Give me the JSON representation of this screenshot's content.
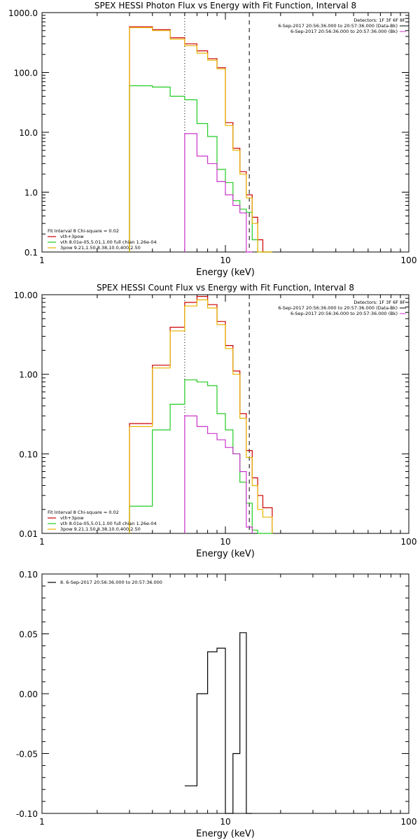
{
  "chart_data": [
    {
      "type": "line",
      "title": "SPEX HESSI Photon Flux vs Energy with Fit Function, Interval 8",
      "xlabel": "Energy (keV)",
      "ylabel": "",
      "xscale": "log",
      "yscale": "log",
      "xlim": [
        1,
        100
      ],
      "ylim": [
        0.1,
        1000
      ],
      "xticks": [
        "1",
        "10",
        "100"
      ],
      "yticks": [
        "0.1",
        "1.0",
        "10.0",
        "100.0",
        "1000.0"
      ],
      "ytick_values": [
        0.1,
        1,
        10,
        100,
        1000
      ],
      "vlines": [
        {
          "x": 6.0,
          "style": "dotted"
        },
        {
          "x": 13.5,
          "style": "dashed"
        }
      ],
      "edges": [
        3,
        4,
        5,
        6,
        7,
        8,
        9,
        10,
        11,
        12,
        13,
        14,
        15,
        16,
        18
      ],
      "series": [
        {
          "name": "vth+3pow",
          "color": "#cc0000",
          "values": [
            580,
            520,
            380,
            300,
            230,
            170,
            120,
            14.5,
            5.4,
            2.2,
            0.9,
            0.38,
            0.16,
            0.1
          ]
        },
        {
          "name": "vth 8.01e-05,5.01,1.00 full chian 1.26e-04",
          "color": "#22cc22",
          "values": [
            60,
            57,
            40,
            35,
            14,
            8.5,
            2.4,
            1.45,
            0.72,
            0.52,
            0.46,
            0.16,
            0.1,
            0.1
          ]
        },
        {
          "name": "3pow 9.21,1.50,8.38,10.0,400,2.50",
          "color": "#e8b400",
          "values": [
            560,
            500,
            360,
            280,
            210,
            160,
            115,
            13,
            5,
            2.0,
            0.8,
            0.3,
            0.1,
            0.1
          ]
        },
        {
          "name": "",
          "color": "#cc33cc",
          "values": [
            null,
            null,
            null,
            9.5,
            4,
            3,
            1.5,
            0.9,
            0.6,
            0.45,
            0.1,
            null,
            null,
            null
          ]
        }
      ],
      "legend": {
        "placement": "bottom-left",
        "header": "Fit Interval 8   Chi-square = 0.02",
        "entries": [
          {
            "label": "vth+3pow",
            "color": "#cc0000"
          },
          {
            "label": "vth 8.01e-05,5.01,1.00  full chian 1.26e-04",
            "color": "#22cc22"
          },
          {
            "label": "3pow 9.21,1.50,8.38,10.0,400,2.50",
            "color": "#e8b400"
          }
        ]
      },
      "info": {
        "detectors": "Detectors: 1F 3F 6F 8F",
        "line1": "6-Sep-2017 20:56:36.000 to 20:57:36.000 (Data-Bk)",
        "line2": "6-Sep-2017 20:56:36.000 to 20:57:36.000 (Bk)"
      }
    },
    {
      "type": "line",
      "title": "SPEX HESSI Count Flux vs Energy with Fit Function, Interval 8",
      "xlabel": "Energy (keV)",
      "ylabel": "",
      "xscale": "log",
      "yscale": "log",
      "xlim": [
        1,
        100
      ],
      "ylim": [
        0.01,
        10
      ],
      "xticks": [
        "1",
        "10",
        "100"
      ],
      "yticks": [
        "0.01",
        "0.10",
        "1.00",
        "10.00"
      ],
      "ytick_values": [
        0.01,
        0.1,
        1,
        10
      ],
      "vlines": [
        {
          "x": 6.0,
          "style": "dotted"
        },
        {
          "x": 13.5,
          "style": "dashed"
        }
      ],
      "edges": [
        3,
        4,
        5,
        6,
        7,
        8,
        9,
        10,
        11,
        12,
        13,
        14,
        15,
        16,
        18
      ],
      "series": [
        {
          "name": "vth+3pow",
          "color": "#cc0000",
          "values": [
            0.24,
            1.3,
            3.9,
            8.0,
            9.5,
            7.5,
            4.6,
            2.3,
            1.1,
            0.32,
            0.11,
            0.05,
            0.03,
            0.021
          ]
        },
        {
          "name": "vth 8.01e-05,5.01,1.00 full chian 1.26e-04",
          "color": "#22cc22",
          "values": [
            0.022,
            0.2,
            0.42,
            0.85,
            0.8,
            0.72,
            0.32,
            0.2,
            0.1,
            0.044,
            0.024,
            0.011,
            0.01,
            0.01
          ]
        },
        {
          "name": "3pow 9.21,1.50,8.38,10.0,400,2.50",
          "color": "#e8b400",
          "values": [
            0.22,
            1.2,
            3.5,
            7.2,
            8.6,
            6.8,
            4.2,
            2.1,
            1.0,
            0.28,
            0.09,
            0.04,
            0.02,
            0.016
          ]
        },
        {
          "name": "",
          "color": "#cc33cc",
          "values": [
            null,
            null,
            null,
            0.3,
            0.22,
            0.18,
            0.15,
            0.12,
            0.1,
            0.06,
            0.012,
            null,
            null,
            null
          ]
        }
      ],
      "legend": {
        "placement": "bottom-left",
        "header": "Fit Interval 8   Chi-square = 0.02",
        "entries": [
          {
            "label": "vth+3pow",
            "color": "#cc0000"
          },
          {
            "label": "vth 8.01e-05,5.01,1.00  full chian 1.26e-04",
            "color": "#22cc22"
          },
          {
            "label": "3pow 9.21,1.50,8.38,10.0,400,2.50",
            "color": "#e8b400"
          }
        ]
      },
      "info": {
        "detectors": "Detectors: 1F 3F 6F 8F",
        "line1": "6-Sep-2017 20:56:36.000 to 20:57:36.000 (Data-Bk)",
        "line2": "6-Sep-2017 20:56:36.000 to 20:57:36.000 (Bk)"
      }
    },
    {
      "type": "line",
      "title": "",
      "xlabel": "Energy (keV)",
      "ylabel": "",
      "xscale": "log",
      "yscale": "linear",
      "xlim": [
        1,
        100
      ],
      "ylim": [
        -0.1,
        0.1
      ],
      "xticks": [
        "1",
        "10",
        "100"
      ],
      "yticks": [
        "-0.10",
        "-0.05",
        "0.00",
        "0.05",
        "0.10"
      ],
      "ytick_values": [
        -0.1,
        -0.05,
        0,
        0.05,
        0.1
      ],
      "edges": [
        6,
        7,
        8,
        9,
        10,
        11,
        12,
        13,
        14
      ],
      "series": [
        {
          "name": "8.  6-Sep-2017 20:56:36.000 to 20:57:36.000",
          "color": "#000000",
          "values": [
            -0.077,
            0.0,
            0.035,
            0.038,
            -0.1,
            -0.05,
            0.051,
            -0.1
          ]
        }
      ],
      "legend": {
        "placement": "top-left",
        "entries": [
          {
            "label": "8.  6-Sep-2017 20:56:36.000 to 20:57:36.000",
            "color": "#000000"
          }
        ]
      }
    }
  ]
}
